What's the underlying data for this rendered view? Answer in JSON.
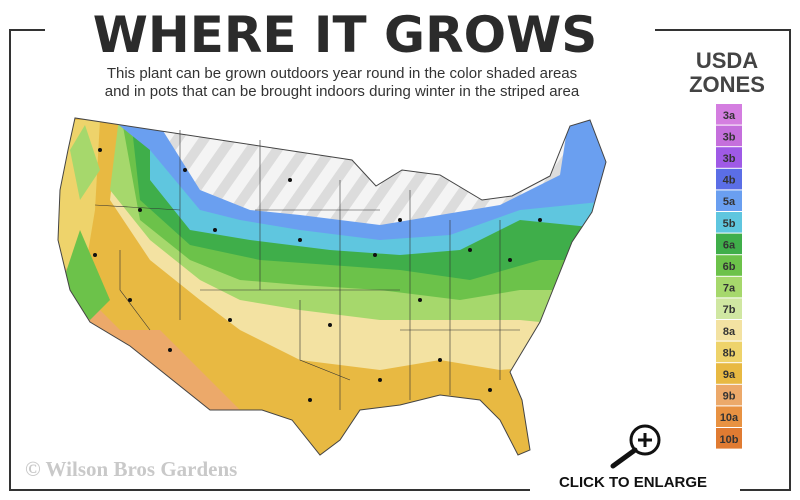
{
  "header": {
    "title": "WHERE IT GROWS"
  },
  "description": [
    "This plant can be grown outdoors year round in the color shaded areas",
    "and in pots that can be brought indoors during winter in the striped area"
  ],
  "legend": {
    "title": [
      "USDA",
      "ZONES"
    ],
    "zones": [
      {
        "label": "3a",
        "color": "#d47ee0"
      },
      {
        "label": "3b",
        "color": "#c56fdc"
      },
      {
        "label": "3b",
        "color": "#9f5ae6"
      },
      {
        "label": "4b",
        "color": "#5b6ee6"
      },
      {
        "label": "5a",
        "color": "#6a9ff0"
      },
      {
        "label": "5b",
        "color": "#5fc6df"
      },
      {
        "label": "6a",
        "color": "#3fae4a"
      },
      {
        "label": "6b",
        "color": "#6cc24a"
      },
      {
        "label": "7a",
        "color": "#a6d86c"
      },
      {
        "label": "7b",
        "color": "#d0e7a2"
      },
      {
        "label": "8a",
        "color": "#f3e2a2"
      },
      {
        "label": "8b",
        "color": "#eed36b"
      },
      {
        "label": "9a",
        "color": "#e8b942"
      },
      {
        "label": "9b",
        "color": "#eca96a"
      },
      {
        "label": "10a",
        "color": "#e89242"
      },
      {
        "label": "10b",
        "color": "#e07b32"
      }
    ]
  },
  "watermark": "© Wilson Bros Gardens",
  "button": {
    "label": "CLICK TO ENLARGE"
  }
}
